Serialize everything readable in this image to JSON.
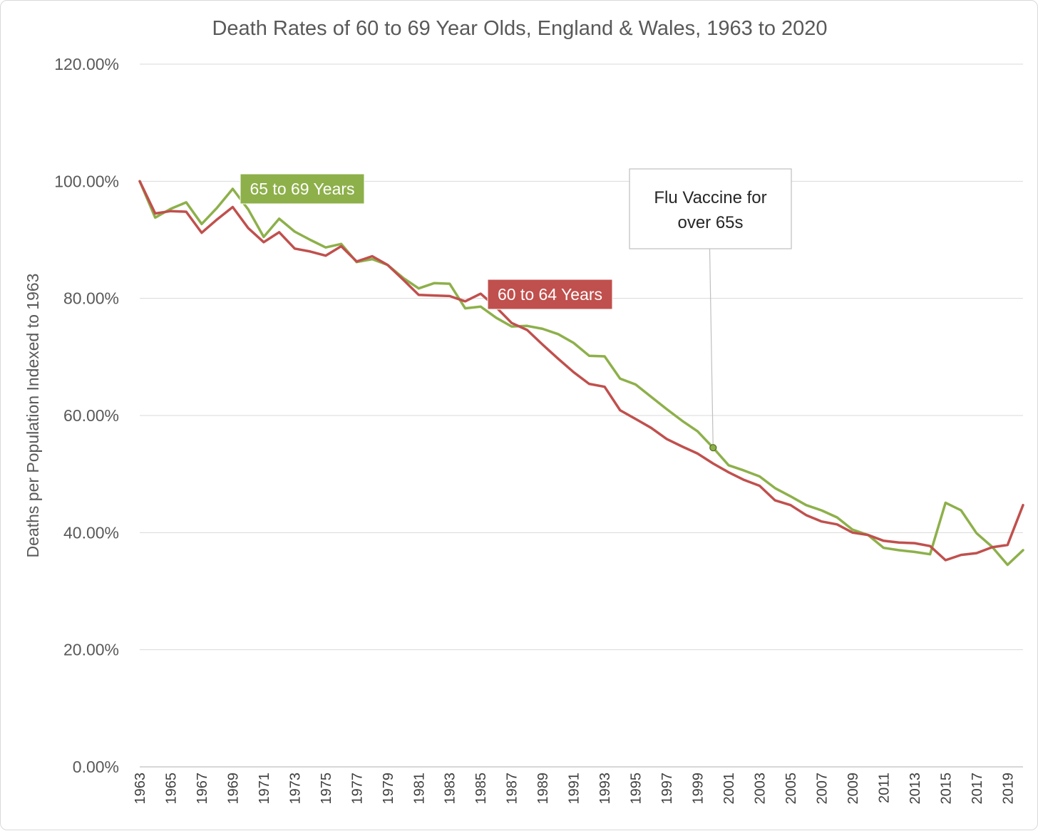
{
  "chart_data": {
    "type": "line",
    "title": "Death Rates of 60 to 69 Year Olds, England & Wales, 1963 to 2020",
    "xlabel": "",
    "ylabel": "Deaths per Population Indexed to 1963",
    "ylim": [
      0,
      1.2
    ],
    "yticks": [
      "0.00%",
      "20.00%",
      "40.00%",
      "60.00%",
      "80.00%",
      "100.00%",
      "120.00%"
    ],
    "xticks": [
      "1963",
      "1965",
      "1967",
      "1969",
      "1971",
      "1973",
      "1975",
      "1977",
      "1979",
      "1981",
      "1983",
      "1985",
      "1987",
      "1989",
      "1991",
      "1993",
      "1995",
      "1997",
      "1999",
      "2001",
      "2003",
      "2005",
      "2007",
      "2009",
      "2011",
      "2013",
      "2015",
      "2017",
      "2019"
    ],
    "grid": true,
    "x": [
      1963,
      1964,
      1965,
      1966,
      1967,
      1968,
      1969,
      1970,
      1971,
      1972,
      1973,
      1974,
      1975,
      1976,
      1977,
      1978,
      1979,
      1980,
      1981,
      1982,
      1983,
      1984,
      1985,
      1986,
      1987,
      1988,
      1989,
      1990,
      1991,
      1992,
      1993,
      1994,
      1995,
      1996,
      1997,
      1998,
      1999,
      2000,
      2001,
      2002,
      2003,
      2004,
      2005,
      2006,
      2007,
      2008,
      2009,
      2010,
      2011,
      2012,
      2013,
      2014,
      2015,
      2016,
      2017,
      2018,
      2019,
      2020
    ],
    "series": [
      {
        "name": "65 to 69 Years",
        "color": "#8db04a",
        "values": [
          1.0,
          0.938,
          0.953,
          0.964,
          0.927,
          0.955,
          0.987,
          0.952,
          0.905,
          0.936,
          0.914,
          0.9,
          0.887,
          0.893,
          0.862,
          0.867,
          0.857,
          0.835,
          0.817,
          0.826,
          0.825,
          0.783,
          0.786,
          0.767,
          0.752,
          0.753,
          0.748,
          0.739,
          0.724,
          0.702,
          0.701,
          0.663,
          0.653,
          0.632,
          0.611,
          0.591,
          0.573,
          0.545,
          0.515,
          0.506,
          0.496,
          0.476,
          0.462,
          0.447,
          0.438,
          0.426,
          0.405,
          0.396,
          0.374,
          0.37,
          0.367,
          0.363,
          0.451,
          0.438,
          0.399,
          0.376,
          0.345,
          0.37
        ]
      },
      {
        "name": "60 to 64 Years",
        "color": "#c0504d",
        "values": [
          1.0,
          0.945,
          0.949,
          0.948,
          0.912,
          0.935,
          0.956,
          0.92,
          0.896,
          0.913,
          0.885,
          0.88,
          0.873,
          0.889,
          0.863,
          0.872,
          0.857,
          0.832,
          0.806,
          0.805,
          0.804,
          0.795,
          0.808,
          0.785,
          0.758,
          0.746,
          0.721,
          0.697,
          0.674,
          0.654,
          0.649,
          0.609,
          0.594,
          0.579,
          0.56,
          0.547,
          0.535,
          0.518,
          0.503,
          0.49,
          0.48,
          0.455,
          0.447,
          0.43,
          0.419,
          0.414,
          0.4,
          0.396,
          0.386,
          0.383,
          0.382,
          0.377,
          0.353,
          0.362,
          0.365,
          0.375,
          0.379,
          0.447
        ]
      }
    ],
    "annotation": {
      "line1": "Flu Vaccine for",
      "line2": "over 65s",
      "x": 2000,
      "y": 0.545
    }
  }
}
